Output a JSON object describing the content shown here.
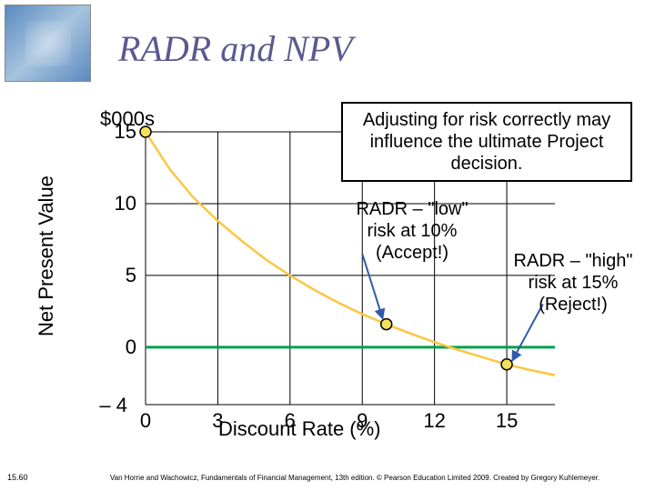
{
  "title": "RADR and NPV",
  "logo": {
    "alt": "building-photo"
  },
  "chart": {
    "type": "line",
    "y_unit_label": "$000s",
    "y_axis_label": "Net Present Value",
    "x_axis_label": "Discount Rate (%)",
    "xlim": [
      0,
      17
    ],
    "ylim": [
      -4,
      15
    ],
    "xtick_values": [
      0,
      3,
      6,
      9,
      12,
      15
    ],
    "xtick_labels": [
      "0",
      "3",
      "6",
      "9",
      "12",
      "15"
    ],
    "ytick_values": [
      0,
      5,
      10,
      15
    ],
    "ytick_labels": [
      "0",
      "5",
      "10",
      "15"
    ],
    "neg4_label": "– 4",
    "curve": {
      "color": "#fbc740",
      "width": 2.5,
      "points": [
        [
          0,
          15
        ],
        [
          1,
          12.4
        ],
        [
          2,
          10.4
        ],
        [
          3,
          8.8
        ],
        [
          4,
          7.4
        ],
        [
          5,
          6.1
        ],
        [
          6,
          5.0
        ],
        [
          7,
          4.0
        ],
        [
          8,
          3.1
        ],
        [
          9,
          2.3
        ],
        [
          10,
          1.6
        ],
        [
          11,
          0.95
        ],
        [
          12,
          0.35
        ],
        [
          13,
          -0.2
        ],
        [
          14,
          -0.7
        ],
        [
          15,
          -1.2
        ],
        [
          16,
          -1.6
        ],
        [
          17,
          -1.95
        ]
      ]
    },
    "zero_line": {
      "color": "#00a04a",
      "width": 3
    },
    "grid_color": "#000000",
    "grid_width": 1,
    "background_color": "#ffffff",
    "markers": {
      "low": {
        "x": 10,
        "y": 1.6,
        "fill": "#f5e25a",
        "stroke": "#000000"
      },
      "high": {
        "x": 15,
        "y": -1.2,
        "fill": "#f5e25a",
        "stroke": "#000000"
      },
      "top": {
        "x": 0,
        "y": 15,
        "fill": "#f5e25a",
        "stroke": "#000000"
      }
    },
    "arrows": {
      "low": {
        "color": "#2f5aa8"
      },
      "high": {
        "color": "#2f5aa8"
      }
    },
    "font": {
      "axis_fontsize": 22,
      "tick_fontsize": 22,
      "title_fontsize": 40,
      "annot_fontsize": 20
    }
  },
  "callout_box": {
    "text": "Adjusting for risk correctly may influence the ultimate Project decision.",
    "border_color": "#000000",
    "bg_color": "#ffffff"
  },
  "annot_low": {
    "line1": "RADR – \"low\"",
    "line2": "risk at 10%",
    "line3": "(Accept!)"
  },
  "annot_high": {
    "line1": "RADR – \"high\"",
    "line2": "risk at 15%",
    "line3": "(Reject!)"
  },
  "footer": "Van Horne and Wachowicz, Fundamentals of Financial Management, 13th edition. © Pearson Education Limited 2009. Created by Gregory Kuhlemeyer.",
  "slide_number": "15.60"
}
